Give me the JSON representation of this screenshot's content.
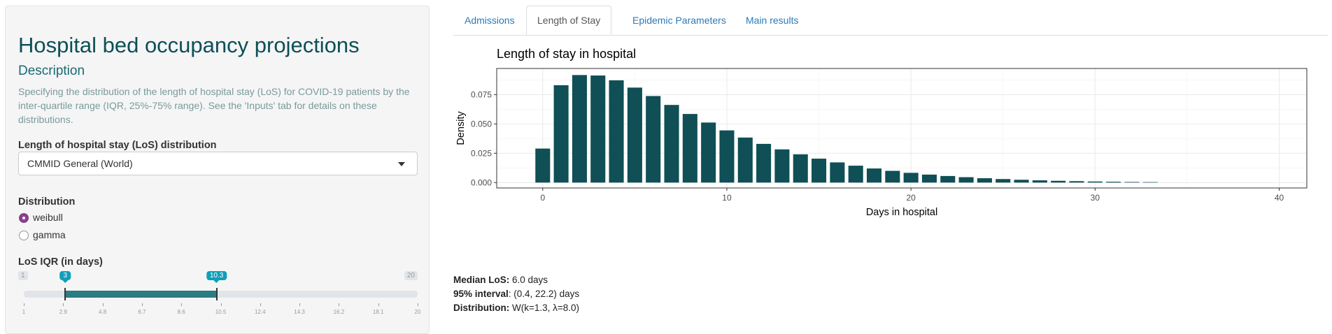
{
  "sidebar": {
    "title": "Hospital bed occupancy projections",
    "description_heading": "Description",
    "description_text": "Specifying the distribution of the length of hospital stay (LoS) for COVID-19 patients by the inter-quartile range (IQR, 25%-75% range). See the 'Inputs' tab for details on these distributions.",
    "los_distribution": {
      "label": "Length of hospital stay (LoS) distribution",
      "selected": "CMMID General (World)"
    },
    "distribution": {
      "label": "Distribution",
      "options": [
        {
          "label": "weibull",
          "checked": true
        },
        {
          "label": "gamma",
          "checked": false
        }
      ]
    },
    "iqr_slider": {
      "label": "LoS IQR (in days)",
      "min": 1,
      "max": 20,
      "low": 3,
      "high": 10.3,
      "min_label": "1",
      "max_label": "20",
      "low_label": "3",
      "high_label": "10.3",
      "grid": [
        "1",
        "2.9",
        "4.8",
        "6.7",
        "8.6",
        "10.5",
        "12.4",
        "14.3",
        "16.2",
        "18.1",
        "20"
      ]
    }
  },
  "tabs": [
    {
      "label": "Admissions",
      "active": false
    },
    {
      "label": "Length of Stay",
      "active": true
    },
    {
      "label": "Epidemic Parameters",
      "active": false
    },
    {
      "label": "Main results",
      "active": false
    }
  ],
  "chart_data": {
    "type": "bar",
    "title": "Length of stay in hospital",
    "xlabel": "Days in hospital",
    "ylabel": "Density",
    "bar_color": "#0f4f55",
    "x": [
      0,
      1,
      2,
      3,
      4,
      5,
      6,
      7,
      8,
      9,
      10,
      11,
      12,
      13,
      14,
      15,
      16,
      17,
      18,
      19,
      20,
      21,
      22,
      23,
      24,
      25,
      26,
      27,
      28,
      29,
      30,
      31,
      32,
      33
    ],
    "values": [
      0.029,
      0.083,
      0.0917,
      0.0913,
      0.0872,
      0.081,
      0.0738,
      0.0662,
      0.0585,
      0.0512,
      0.0445,
      0.0384,
      0.033,
      0.0283,
      0.0241,
      0.0204,
      0.0172,
      0.0144,
      0.012,
      0.01,
      0.0083,
      0.0068,
      0.0056,
      0.0046,
      0.0037,
      0.003,
      0.0024,
      0.0019,
      0.0015,
      0.0012,
      0.0009,
      0.0007,
      0.0005,
      0.0004
    ],
    "xlim": [
      -2.5,
      41.5
    ],
    "ylim": [
      -0.0046,
      0.0973
    ],
    "x_ticks": [
      0,
      10,
      20,
      30,
      40
    ],
    "y_ticks": [
      0.0,
      0.025,
      0.05,
      0.075
    ],
    "y_tick_labels": [
      "0.000",
      "0.025",
      "0.050",
      "0.075"
    ],
    "grid": true
  },
  "summary": {
    "median_label": "Median LoS:",
    "median_value": "6.0 days",
    "interval_label": "95% interval",
    "interval_value": ": (0.4, 22.2) days",
    "distribution_label": "Distribution:",
    "distribution_value": "W(k=1.3, λ=8.0)"
  },
  "colors": {
    "accent": "#0d4f57",
    "link": "#2a7ab8",
    "radio_checked": "#8a3f8e",
    "slider_bar": "#2b7c83",
    "slider_bubble": "#0f9fb9"
  }
}
